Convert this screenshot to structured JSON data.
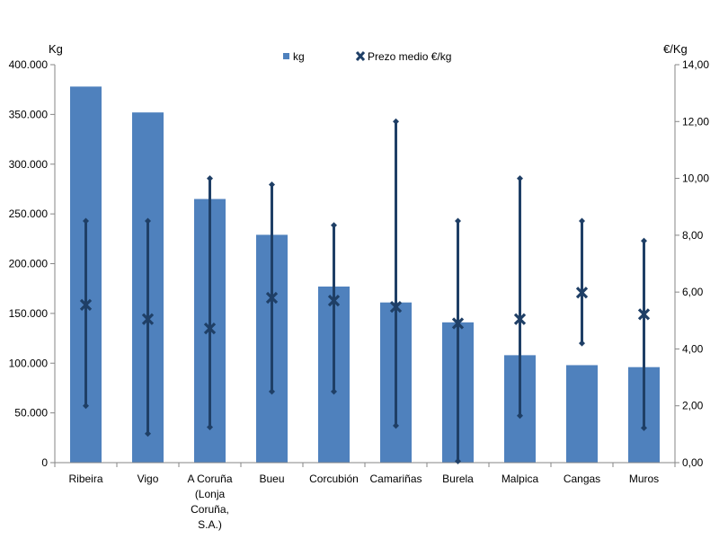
{
  "chart_data": {
    "type": "bar",
    "title": "",
    "categories": [
      [
        "Ribeira"
      ],
      [
        "Vigo"
      ],
      [
        "A Coruña",
        "(Lonja",
        "Coruña,",
        "S.A.)"
      ],
      [
        "Bueu"
      ],
      [
        "Corcubión"
      ],
      [
        "Camariñas"
      ],
      [
        "Burela"
      ],
      [
        "Malpica"
      ],
      [
        "Cangas"
      ],
      [
        "Muros"
      ]
    ],
    "y_left": {
      "label": "Kg",
      "ylim": [
        0,
        400000
      ],
      "ticks": [
        "0",
        "50.000",
        "100.000",
        "150.000",
        "200.000",
        "250.000",
        "300.000",
        "350.000",
        "400.000"
      ]
    },
    "y_right": {
      "label": "€/Kg",
      "ylim": [
        0,
        14
      ],
      "ticks": [
        "0,00",
        "2,00",
        "4,00",
        "6,00",
        "8,00",
        "10,00",
        "12,00",
        "14,00"
      ]
    },
    "legend": {
      "placement": "top-center",
      "entries": [
        "kg",
        "Prezo medio €/kg"
      ]
    },
    "series": [
      {
        "name": "kg",
        "kind": "bar",
        "axis": "left",
        "color": "#4f81bd",
        "values": [
          378000,
          352000,
          265000,
          229000,
          177000,
          161000,
          141000,
          108000,
          98000,
          96000
        ]
      },
      {
        "name": "Prezo medio €/kg",
        "kind": "marker-x",
        "axis": "right",
        "color": "#1f3f66",
        "values": [
          5.55,
          5.05,
          4.72,
          5.8,
          5.7,
          5.48,
          4.9,
          5.05,
          5.98,
          5.22
        ],
        "max": [
          8.5,
          8.5,
          10.0,
          9.78,
          8.35,
          12.0,
          8.5,
          10.0,
          8.5,
          7.8
        ],
        "min": [
          2.0,
          1.02,
          1.25,
          2.5,
          2.5,
          1.3,
          0.05,
          1.65,
          4.2,
          1.22
        ]
      }
    ],
    "grid": false
  }
}
